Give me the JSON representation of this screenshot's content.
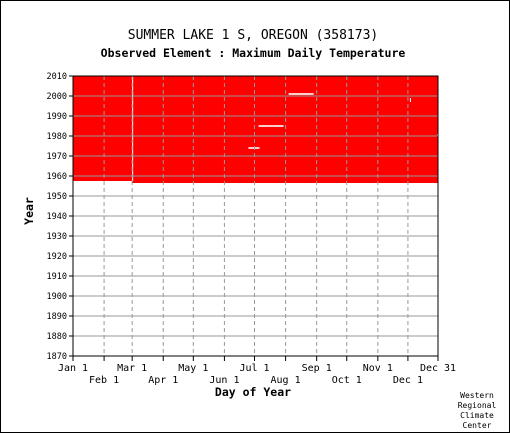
{
  "chart_data": {
    "type": "heatmap",
    "title": "SUMMER LAKE 1 S, OREGON   (358173)",
    "subtitle": "Observed Element : Maximum Daily Temperature",
    "xlabel": "Day of Year",
    "ylabel": "Year",
    "xlim": [
      1,
      365
    ],
    "ylim": [
      1870,
      2010
    ],
    "x_ticks_top_row": [
      {
        "label": "Jan 1",
        "day": 1
      },
      {
        "label": "Mar 1",
        "day": 60
      },
      {
        "label": "May 1",
        "day": 121
      },
      {
        "label": "Jul 1",
        "day": 182
      },
      {
        "label": "Sep 1",
        "day": 244
      },
      {
        "label": "Nov 1",
        "day": 305
      },
      {
        "label": "Dec 31",
        "day": 365
      }
    ],
    "x_ticks_bottom_row": [
      {
        "label": "Feb 1",
        "day": 32
      },
      {
        "label": "Apr 1",
        "day": 91
      },
      {
        "label": "Jun 1",
        "day": 152
      },
      {
        "label": "Aug 1",
        "day": 213
      },
      {
        "label": "Oct 1",
        "day": 274
      },
      {
        "label": "Dec 1",
        "day": 335
      }
    ],
    "y_ticks": [
      1870,
      1880,
      1890,
      1900,
      1910,
      1920,
      1930,
      1940,
      1950,
      1960,
      1970,
      1980,
      1990,
      2000,
      2010
    ],
    "data_color": "#ff0000",
    "grid": true,
    "observed_periods": [
      {
        "day_start": 1,
        "day_end": 60,
        "year_start": 1957.5,
        "year_end": 2010
      },
      {
        "day_start": 60,
        "day_end": 365,
        "year_start": 1956.5,
        "year_end": 2010
      }
    ],
    "missing_segments": [
      {
        "day_start": 60,
        "day_end": 61,
        "year_start": 1957.5,
        "year_end": 2010
      },
      {
        "day_start": 176,
        "day_end": 187,
        "year_start": 1973.6,
        "year_end": 1974.4
      },
      {
        "day_start": 186,
        "day_end": 211,
        "year_start": 1984.6,
        "year_end": 1985.4
      },
      {
        "day_start": 216,
        "day_end": 241,
        "year_start": 2000.6,
        "year_end": 2001.4
      },
      {
        "day_start": 337,
        "day_end": 338,
        "year_start": 1997,
        "year_end": 1999
      },
      {
        "day_start": 364,
        "day_end": 365,
        "year_start": 1980,
        "year_end": 1981
      }
    ]
  },
  "credit": [
    "Western",
    "Regional",
    "Climate",
    "Center"
  ]
}
